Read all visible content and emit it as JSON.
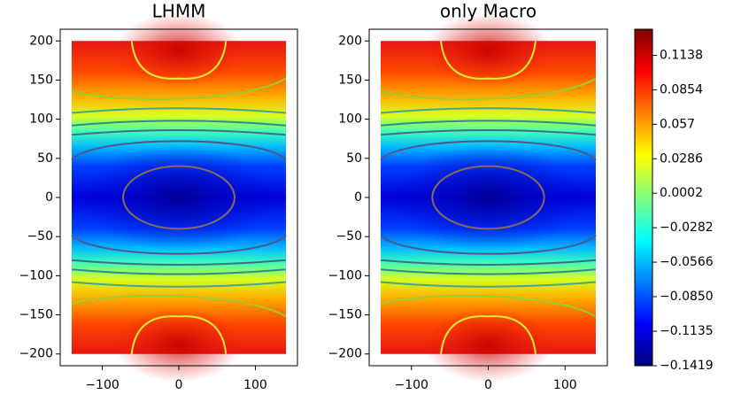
{
  "chart_data": [
    {
      "type": "contour",
      "title": "LHMM",
      "x": [
        -140,
        140
      ],
      "y": [
        -200,
        200
      ],
      "xlim": [
        -155,
        155
      ],
      "ylim": [
        -215,
        215
      ],
      "xticks": [
        {
          "value": -100,
          "label": "−100"
        },
        0,
        100
      ],
      "yticks": [
        {
          "value": -200,
          "label": "−200"
        },
        {
          "value": -150,
          "label": "−150"
        },
        {
          "value": -100,
          "label": "−100"
        },
        {
          "value": -50,
          "label": "−50"
        },
        0,
        50,
        100,
        150,
        200
      ]
    },
    {
      "type": "contour",
      "title": "only Macro",
      "x": [
        -140,
        140
      ],
      "y": [
        -200,
        200
      ],
      "xlim": [
        -155,
        155
      ],
      "ylim": [
        -215,
        215
      ],
      "xticks": [
        {
          "value": -100,
          "label": "−100"
        },
        0,
        100
      ],
      "yticks": [
        {
          "value": -200,
          "label": "−200"
        },
        {
          "value": -150,
          "label": "−150"
        },
        {
          "value": -100,
          "label": "−100"
        },
        {
          "value": -50,
          "label": "−50"
        },
        0,
        50,
        100,
        150,
        200
      ]
    },
    {
      "type": "colorbar",
      "ylim": [
        -0.1419,
        0.1353
      ],
      "colors": [
        "#00007f",
        "#0000ff",
        "#007fff",
        "#00ffff",
        "#7fff7f",
        "#ffff00",
        "#ff7f00",
        "#ff0000",
        "#7f0000"
      ],
      "yticks": [
        {
          "value": -0.1419,
          "label": "−0.1419"
        },
        {
          "value": -0.1135,
          "label": "−0.1135"
        },
        {
          "value": -0.085,
          "label": "−0.0850"
        },
        {
          "value": -0.0566,
          "label": "−0.0566"
        },
        {
          "value": -0.0282,
          "label": "−0.0282"
        },
        0.0002,
        0.0286,
        0.057,
        0.0854,
        0.1138
      ]
    }
  ]
}
